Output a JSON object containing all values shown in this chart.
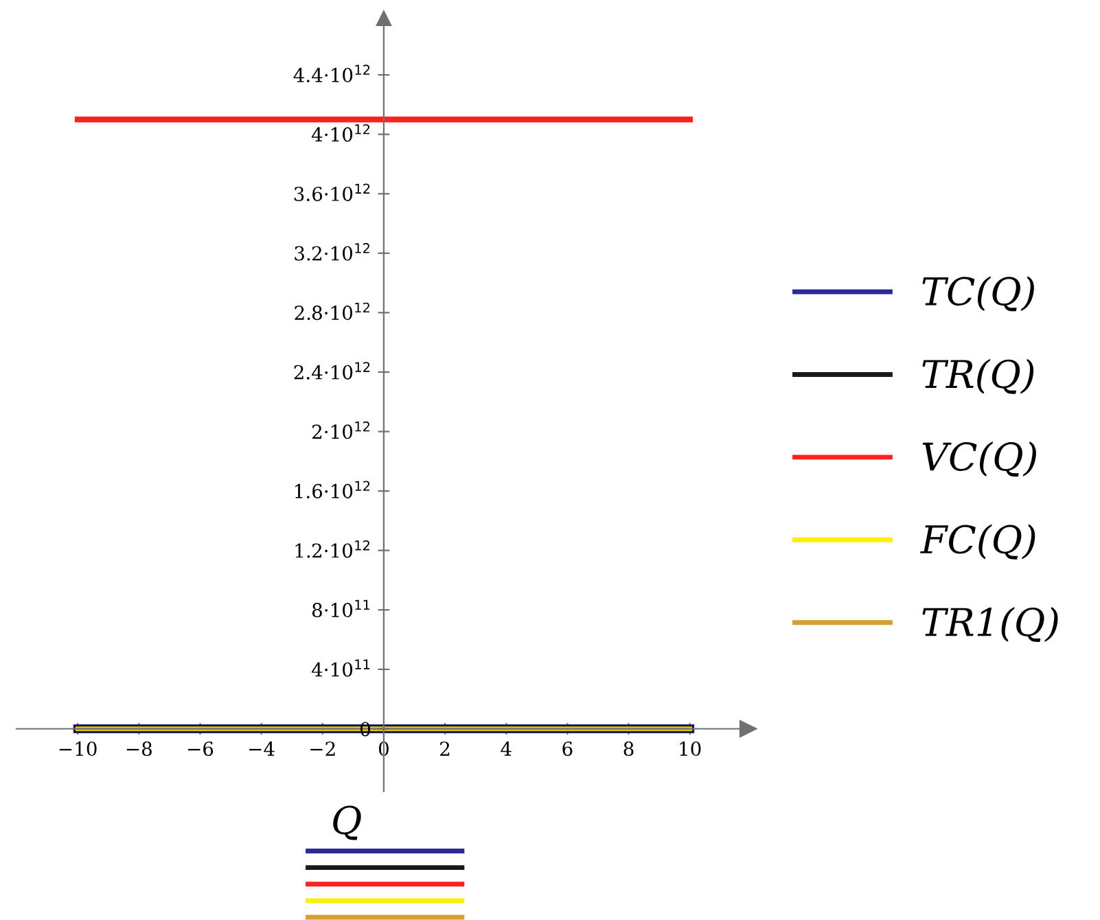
{
  "chart_data": {
    "type": "line",
    "xlabel": "Q",
    "x": [
      -10,
      10
    ],
    "series": [
      {
        "name": "TC(Q)",
        "color": "#2a2a9a",
        "values": [
          0,
          0
        ]
      },
      {
        "name": "TR(Q)",
        "color": "#1a1a1a",
        "values": [
          0,
          0
        ]
      },
      {
        "name": "VC(Q)",
        "color": "#ff2020",
        "values": [
          4100000000000.0,
          4100000000000.0
        ]
      },
      {
        "name": "FC(Q)",
        "color": "#ffee00",
        "values": [
          0,
          0
        ]
      },
      {
        "name": "TR1(Q)",
        "color": "#d4a030",
        "values": [
          0,
          0
        ]
      }
    ],
    "xlim": [
      -12,
      11.9
    ],
    "ylim": [
      -420000000000.0,
      4780000000000.0
    ],
    "xticks": [
      {
        "value": -10,
        "label": "−10"
      },
      {
        "value": -8,
        "label": "−8"
      },
      {
        "value": -6,
        "label": "−6"
      },
      {
        "value": -4,
        "label": "−4"
      },
      {
        "value": -2,
        "label": "−2"
      },
      0,
      2,
      4,
      6,
      8,
      10
    ],
    "yticks": [
      {
        "value": 0,
        "label": "0"
      },
      {
        "value": 400000000000.0,
        "label": "4·10$^{11}$"
      },
      {
        "value": 800000000000.0,
        "label": "8·10$^{11}$"
      },
      {
        "value": 1200000000000.0,
        "label": "1.2·10$^{12}$"
      },
      {
        "value": 1600000000000.0,
        "label": "1.6·10$^{12}$"
      },
      {
        "value": 2000000000000.0,
        "label": "2·10$^{12}$"
      },
      {
        "value": 2400000000000.0,
        "label": "2.4·10$^{12}$"
      },
      {
        "value": 2800000000000.0,
        "label": "2.8·10$^{12}$"
      },
      {
        "value": 3200000000000.0,
        "label": "3.2·10$^{12}$"
      },
      {
        "value": 3600000000000.0,
        "label": "3.6·10$^{12}$"
      },
      {
        "value": 4000000000000.0,
        "label": "4·10$^{12}$"
      },
      {
        "value": 4400000000000.0,
        "label": "4.4·10$^{12}$"
      }
    ],
    "grid": false,
    "legend": "right",
    "marker": "none",
    "line_style": "solid"
  }
}
